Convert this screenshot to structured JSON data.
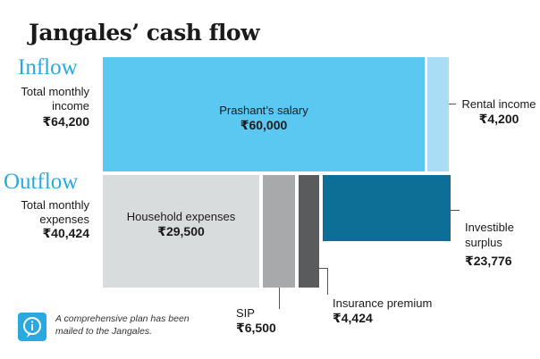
{
  "title": "Jangales’ cash flow",
  "inflow": {
    "heading": "Inflow",
    "label": "Total monthly income",
    "value": "₹64,200"
  },
  "outflow": {
    "heading": "Outflow",
    "label": "Total monthly expenses",
    "value": "₹40,424"
  },
  "note": "A comprehensive plan has been mailed to the Jangales.",
  "chart_data": {
    "type": "treemap",
    "currency": "₹",
    "inflow": {
      "total": 64200,
      "items": [
        {
          "name": "Prashant’s salary",
          "value": 60000,
          "display": "₹60,000",
          "color": "#5bc8f2"
        },
        {
          "name": "Rental income",
          "value": 4200,
          "display": "₹4,200",
          "color": "#a9dcf5"
        }
      ]
    },
    "outflow": {
      "total": 40424,
      "items": [
        {
          "name": "Household expenses",
          "value": 29500,
          "display": "₹29,500",
          "color": "#d9dcdd"
        },
        {
          "name": "SIP",
          "value": 6500,
          "display": "₹6,500",
          "color": "#a7a9ab"
        },
        {
          "name": "Insurance premium",
          "value": 4424,
          "display": "₹4,424",
          "color": "#5a5b5d"
        }
      ]
    },
    "surplus": {
      "name": "Investible surplus",
      "value": 23776,
      "display": "₹23,776",
      "color": "#0e6f96"
    }
  }
}
